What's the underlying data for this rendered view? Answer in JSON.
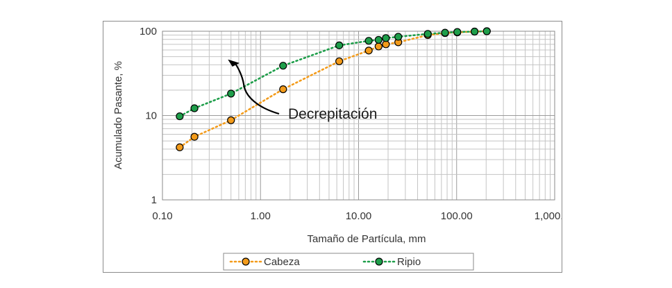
{
  "chart_data": {
    "type": "scatter",
    "x_scale": "log",
    "y_scale": "log",
    "xlim": [
      0.1,
      1000
    ],
    "ylim": [
      1,
      100
    ],
    "xlabel": "Tamaño de Partícula, mm",
    "ylabel": "Acumulado Pasante, %",
    "x_ticks": [
      "0.10",
      "1.00",
      "10.00",
      "100.00",
      "1,000.00"
    ],
    "y_ticks": [
      "1",
      "10",
      "100"
    ],
    "grid": true,
    "legend_position": "bottom",
    "annotation": {
      "text": "Decrepitación",
      "arrow": "curved arrow pointing up-left from the Cabeza curve toward the Ripio curve"
    },
    "series": [
      {
        "name": "Cabeza",
        "color": "#f39b1a",
        "line_style": "dotted",
        "x": [
          0.15,
          0.212,
          0.5,
          1.7,
          6.35,
          12.7,
          16,
          19,
          25.4,
          50.8,
          76.2,
          101.6,
          152.4,
          203.2
        ],
        "y": [
          4.2,
          5.6,
          8.8,
          20.5,
          44,
          59,
          66,
          70,
          74,
          90,
          95,
          97,
          99,
          100
        ]
      },
      {
        "name": "Ripio",
        "color": "#1e9e4a",
        "line_style": "dotted",
        "x": [
          0.15,
          0.212,
          0.5,
          1.7,
          6.35,
          12.7,
          16,
          19,
          25.4,
          50.8,
          76.2,
          101.6,
          152.4,
          203.2
        ],
        "y": [
          9.8,
          12.2,
          18.2,
          39,
          68,
          77,
          79,
          83,
          86,
          93,
          96,
          98,
          99,
          100
        ]
      }
    ]
  }
}
